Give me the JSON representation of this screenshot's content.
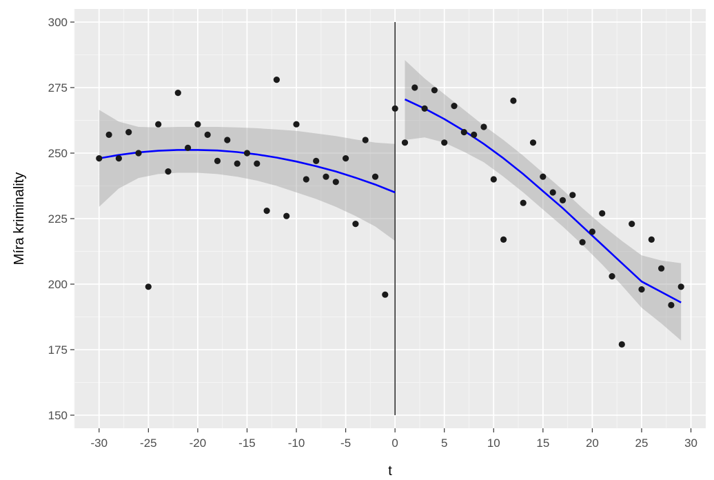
{
  "chart_data": {
    "type": "scatter",
    "title": "",
    "xlabel": "t",
    "ylabel": "Míra kriminality",
    "xlim": [
      -32.5,
      31.5
    ],
    "ylim": [
      145,
      305
    ],
    "x_ticks": [
      -30,
      -25,
      -20,
      -15,
      -10,
      -5,
      0,
      5,
      10,
      15,
      20,
      25,
      30
    ],
    "x_tick_labels": [
      "-30",
      "-25",
      "-20",
      "-15",
      "-10",
      "-5",
      "0",
      "5",
      "10",
      "15",
      "20",
      "25",
      "30"
    ],
    "y_ticks": [
      150,
      175,
      200,
      225,
      250,
      275,
      300
    ],
    "y_tick_labels": [
      "150",
      "175",
      "200",
      "225",
      "250",
      "275",
      "300"
    ],
    "grid": true,
    "legend": "none",
    "cutoff_x": 0,
    "cutoff_y_range": [
      150,
      300
    ],
    "points": [
      {
        "x": -30,
        "y": 248
      },
      {
        "x": -29,
        "y": 257
      },
      {
        "x": -28,
        "y": 248
      },
      {
        "x": -27,
        "y": 258
      },
      {
        "x": -26,
        "y": 250
      },
      {
        "x": -25,
        "y": 199
      },
      {
        "x": -24,
        "y": 261
      },
      {
        "x": -23,
        "y": 243
      },
      {
        "x": -22,
        "y": 273
      },
      {
        "x": -21,
        "y": 252
      },
      {
        "x": -20,
        "y": 261
      },
      {
        "x": -19,
        "y": 257
      },
      {
        "x": -18,
        "y": 247
      },
      {
        "x": -17,
        "y": 255
      },
      {
        "x": -16,
        "y": 246
      },
      {
        "x": -15,
        "y": 250
      },
      {
        "x": -14,
        "y": 246
      },
      {
        "x": -13,
        "y": 228
      },
      {
        "x": -12,
        "y": 278
      },
      {
        "x": -11,
        "y": 226
      },
      {
        "x": -10,
        "y": 261
      },
      {
        "x": -9,
        "y": 240
      },
      {
        "x": -8,
        "y": 247
      },
      {
        "x": -7,
        "y": 241
      },
      {
        "x": -6,
        "y": 239
      },
      {
        "x": -5,
        "y": 248
      },
      {
        "x": -4,
        "y": 223
      },
      {
        "x": -3,
        "y": 255
      },
      {
        "x": -2,
        "y": 241
      },
      {
        "x": -1,
        "y": 196
      },
      {
        "x": 0,
        "y": 267
      },
      {
        "x": 1,
        "y": 254
      },
      {
        "x": 2,
        "y": 275
      },
      {
        "x": 3,
        "y": 267
      },
      {
        "x": 4,
        "y": 274
      },
      {
        "x": 5,
        "y": 254
      },
      {
        "x": 6,
        "y": 268
      },
      {
        "x": 7,
        "y": 258
      },
      {
        "x": 8,
        "y": 257
      },
      {
        "x": 9,
        "y": 260
      },
      {
        "x": 10,
        "y": 240
      },
      {
        "x": 11,
        "y": 217
      },
      {
        "x": 12,
        "y": 270
      },
      {
        "x": 13,
        "y": 231
      },
      {
        "x": 14,
        "y": 254
      },
      {
        "x": 15,
        "y": 241
      },
      {
        "x": 16,
        "y": 235
      },
      {
        "x": 17,
        "y": 232
      },
      {
        "x": 18,
        "y": 234
      },
      {
        "x": 19,
        "y": 216
      },
      {
        "x": 20,
        "y": 220
      },
      {
        "x": 21,
        "y": 227
      },
      {
        "x": 22,
        "y": 203
      },
      {
        "x": 23,
        "y": 177
      },
      {
        "x": 24,
        "y": 223
      },
      {
        "x": 25,
        "y": 198
      },
      {
        "x": 26,
        "y": 217
      },
      {
        "x": 27,
        "y": 206
      },
      {
        "x": 28,
        "y": 192
      },
      {
        "x": 29,
        "y": 199
      }
    ],
    "fits": [
      {
        "x": [
          -30,
          -28,
          -26,
          -24,
          -22,
          -20,
          -18,
          -16,
          -14,
          -12,
          -10,
          -8,
          -6,
          -4,
          -2,
          0
        ],
        "y": [
          248.0,
          249.3,
          250.3,
          250.9,
          251.2,
          251.2,
          251.0,
          250.4,
          249.5,
          248.3,
          246.8,
          245.0,
          243.0,
          240.6,
          238.0,
          235.0
        ],
        "lower": [
          229.5,
          236.5,
          240.5,
          242.0,
          242.5,
          242.5,
          242.0,
          241.0,
          239.5,
          237.5,
          235.0,
          232.5,
          229.5,
          226.0,
          222.0,
          216.5
        ],
        "upper": [
          266.5,
          262.0,
          260.0,
          259.8,
          260.0,
          260.0,
          260.0,
          259.8,
          259.5,
          259.0,
          258.5,
          257.5,
          256.5,
          255.2,
          254.0,
          253.5
        ]
      },
      {
        "x": [
          1,
          3,
          5,
          7,
          9,
          11,
          13,
          15,
          17,
          19,
          21,
          23,
          25,
          27,
          29
        ],
        "y": [
          270.5,
          267.0,
          263.0,
          258.5,
          253.5,
          248.0,
          242.0,
          235.5,
          229.0,
          222.0,
          215.0,
          208.0,
          201.0,
          197.0,
          193.0
        ],
        "lower": [
          255.0,
          256.0,
          254.0,
          250.5,
          246.5,
          241.0,
          235.0,
          228.5,
          222.0,
          215.0,
          207.5,
          199.5,
          191.0,
          185.0,
          178.5
        ],
        "upper": [
          285.5,
          278.5,
          272.5,
          266.5,
          260.5,
          255.0,
          249.0,
          242.5,
          236.0,
          229.0,
          222.5,
          216.5,
          211.0,
          209.0,
          208.0
        ]
      }
    ],
    "colors": {
      "panel": "#EBEBEB",
      "grid_major": "#FFFFFF",
      "grid_minor": "#F5F5F5",
      "points": "#1A1A1A",
      "fit_line": "#0000FF",
      "ribbon": "#999999",
      "cutoff": "#000000",
      "tick_text": "#4D4D4D",
      "tick_mark": "#333333"
    }
  }
}
